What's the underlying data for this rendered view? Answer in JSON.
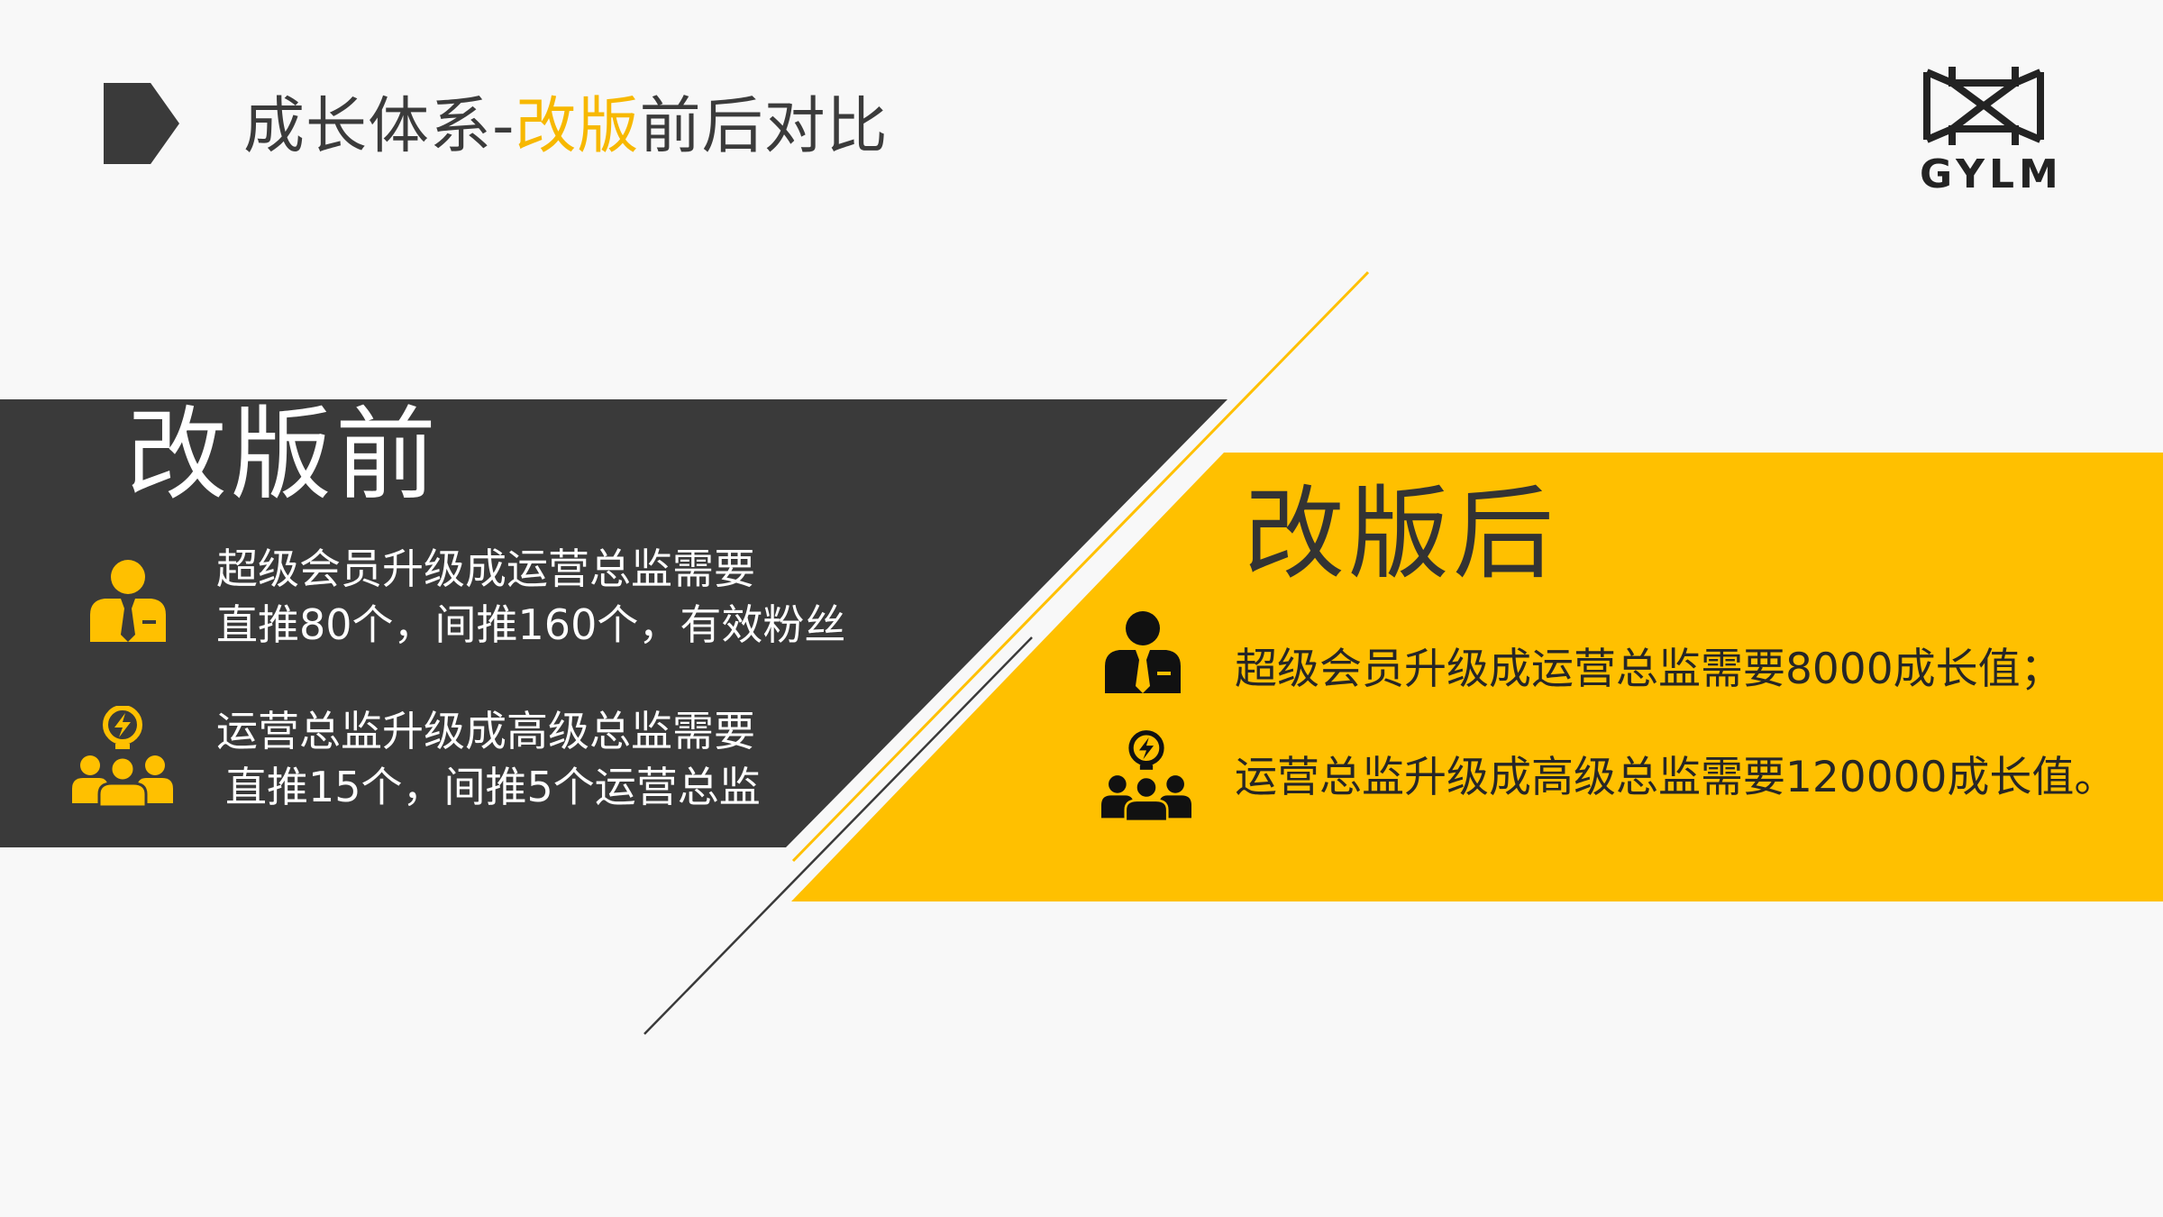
{
  "title": {
    "prefix": "成长体系-",
    "highlight": "改版",
    "suffix": "前后对比"
  },
  "logo": {
    "text": "GYLM"
  },
  "colors": {
    "dark": "#3a3a3a",
    "accent": "#ffc000",
    "background": "#f8f8f8"
  },
  "before": {
    "heading": "改版前",
    "items": [
      {
        "icon": "businessman-icon",
        "lines": [
          "超级会员升级成运营总监需要",
          "直推80个，间推160个，有效粉丝"
        ]
      },
      {
        "icon": "team-idea-icon",
        "lines": [
          "运营总监升级成高级总监需要",
          "直推15个，间推5个运营总监"
        ]
      }
    ]
  },
  "after": {
    "heading": "改版后",
    "items": [
      {
        "icon": "businessman-icon",
        "text": "超级会员升级成运营总监需要8000成长值；"
      },
      {
        "icon": "team-idea-icon",
        "text": "运营总监升级成高级总监需要120000成长值。"
      }
    ]
  }
}
